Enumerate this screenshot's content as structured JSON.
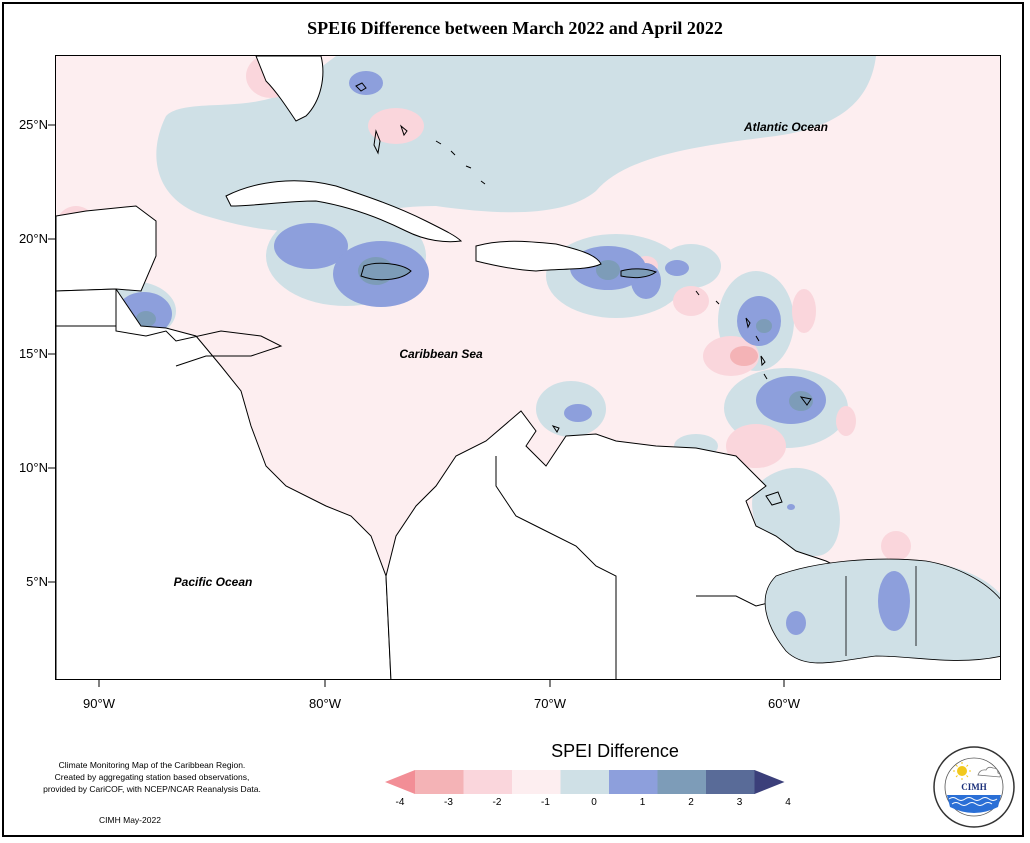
{
  "title": "SPEI6 Difference between March 2022 and April 2022",
  "map": {
    "lat_labels": [
      "25°N",
      "20°N",
      "15°N",
      "10°N",
      "5°N"
    ],
    "lon_labels": [
      "90°W",
      "80°W",
      "70°W",
      "60°W"
    ],
    "ocean_labels": {
      "atlantic": "Atlantic Ocean",
      "caribbean": "Caribbean Sea",
      "pacific": "Pacific Ocean"
    },
    "extent": {
      "lon_min": -92,
      "lon_max": -50,
      "lat_min": 0.8,
      "lat_max": 28.1
    }
  },
  "legend": {
    "title": "SPEI Difference",
    "ticks": [
      "-4",
      "-3",
      "-2",
      "-1",
      "0",
      "1",
      "2",
      "3",
      "4"
    ],
    "colors": [
      "#f28e96",
      "#f4b3b6",
      "#fad6dc",
      "#fdeef0",
      "#cfe0e6",
      "#8d9fdc",
      "#7d9cb8",
      "#596b98",
      "#3b3f7a"
    ]
  },
  "credit": {
    "lines": [
      "Climate Monitoring Map of the Caribbean Region.",
      "Created by aggregating station based observations,",
      "provided by CariCOF, with NCEP/NCAR Reanalysis Data."
    ],
    "date": "CIMH May-2022"
  },
  "logo": {
    "name": "CIMH"
  }
}
